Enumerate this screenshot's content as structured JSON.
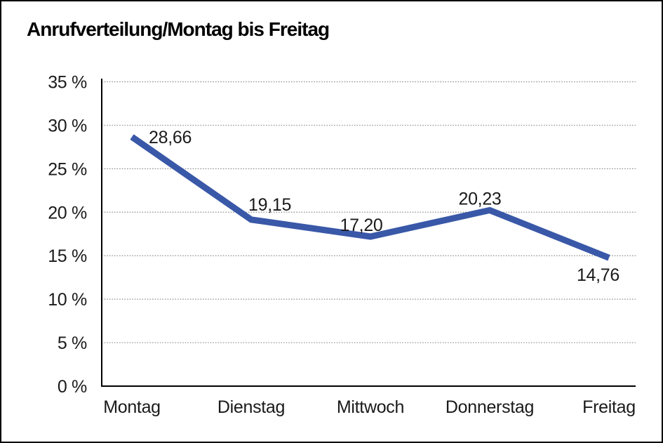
{
  "chart_data": {
    "type": "line",
    "title": "Anrufverteilung/Montag bis Freitag",
    "categories": [
      "Montag",
      "Dienstag",
      "Mittwoch",
      "Donnerstag",
      "Freitag"
    ],
    "values": [
      28.66,
      19.15,
      17.2,
      20.23,
      14.76
    ],
    "point_labels": [
      "28,66",
      "19,15",
      "17,20",
      "20,23",
      "14,76"
    ],
    "xlabel": "",
    "ylabel": "",
    "ylim": [
      0,
      35
    ],
    "ytick_step": 5,
    "ytick_labels": [
      "0 %",
      "5 %",
      "10 %",
      "15 %",
      "20 %",
      "25 %",
      "30 %",
      "35 %"
    ],
    "grid": "horizontal dotted",
    "legend": "none",
    "colors": {
      "line": "#3A58A8",
      "text": "#1a1a1a",
      "grid": "#8a8a8a",
      "axis": "#000000",
      "background": "#ffffff"
    }
  }
}
